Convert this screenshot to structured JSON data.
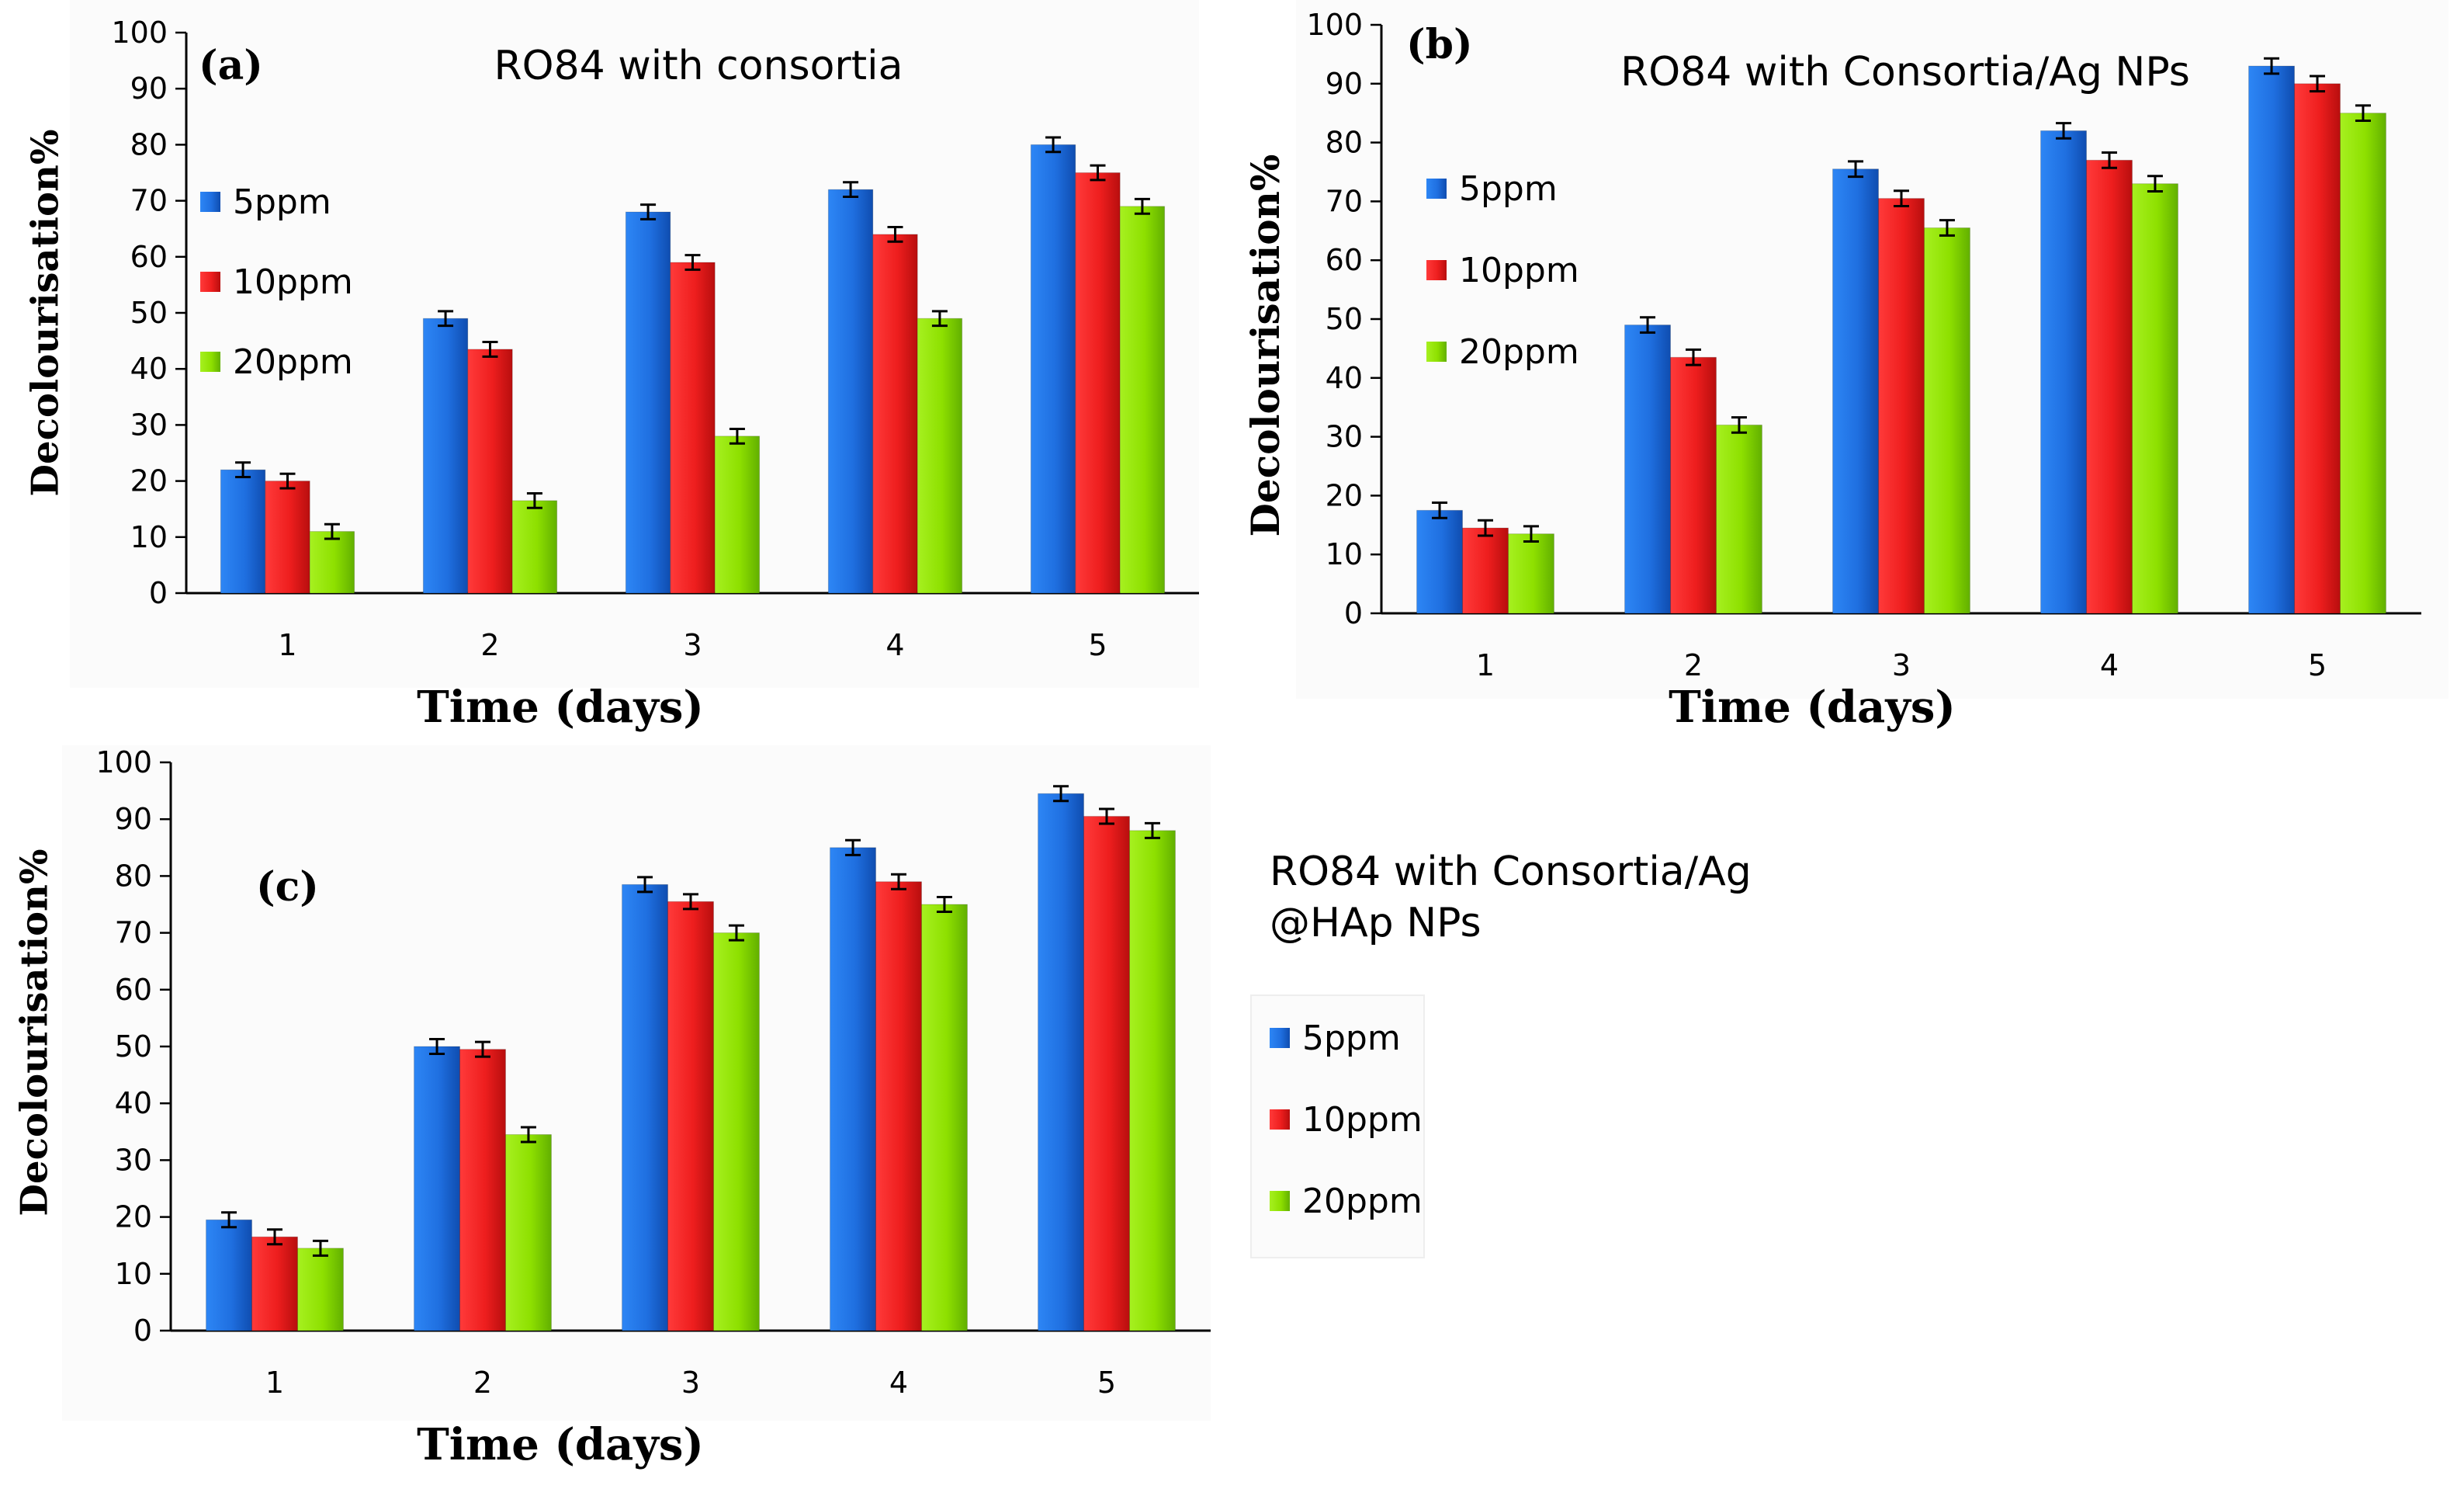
{
  "chart_data": [
    {
      "type": "bar",
      "panel_label": "(a)",
      "title": "RO84  with consortia",
      "xlabel": "Time  (days)",
      "ylabel": "Decolourisation%",
      "categories": [
        "1",
        "2",
        "3",
        "4",
        "5"
      ],
      "ylim": [
        0,
        100
      ],
      "yticks": [
        "0",
        "10",
        "20",
        "30",
        "40",
        "50",
        "60",
        "70",
        "80",
        "90",
        "100"
      ],
      "error_bars": true,
      "series": [
        {
          "name": "5ppm",
          "color": "#1F6FE0",
          "values": [
            22,
            49,
            68,
            72,
            80
          ]
        },
        {
          "name": "10ppm",
          "color": "#EE1E1E",
          "values": [
            20,
            43.5,
            59,
            64,
            75
          ]
        },
        {
          "name": "20ppm",
          "color": "#8EE000",
          "values": [
            11,
            16.5,
            28,
            49,
            69
          ]
        }
      ]
    },
    {
      "type": "bar",
      "panel_label": "(b)",
      "title": "RO84 with Consortia/Ag NPs",
      "xlabel": "Time  (days)",
      "ylabel": "Decolourisation%",
      "categories": [
        "1",
        "2",
        "3",
        "4",
        "5"
      ],
      "ylim": [
        0,
        100
      ],
      "yticks": [
        "0",
        "10",
        "20",
        "30",
        "40",
        "50",
        "60",
        "70",
        "80",
        "90",
        "100"
      ],
      "error_bars": true,
      "series": [
        {
          "name": "5ppm",
          "color": "#1F6FE0",
          "values": [
            17.5,
            49,
            75.5,
            82,
            93
          ]
        },
        {
          "name": "10ppm",
          "color": "#EE1E1E",
          "values": [
            14.5,
            43.5,
            70.5,
            77,
            90
          ]
        },
        {
          "name": "20ppm",
          "color": "#8EE000",
          "values": [
            13.5,
            32,
            65.5,
            73,
            85
          ]
        }
      ]
    },
    {
      "type": "bar",
      "panel_label": "(c)",
      "title": "RO84 with Consortia/Ag\n@HAp NPs",
      "xlabel": "Time  (days)",
      "ylabel": "Decolourisation%",
      "categories": [
        "1",
        "2",
        "3",
        "4",
        "5"
      ],
      "ylim": [
        0,
        100
      ],
      "yticks": [
        "0",
        "10",
        "20",
        "30",
        "40",
        "50",
        "60",
        "70",
        "80",
        "90",
        "100"
      ],
      "error_bars": true,
      "series": [
        {
          "name": "5ppm",
          "color": "#1F6FE0",
          "values": [
            19.5,
            50,
            78.5,
            85,
            94.5
          ]
        },
        {
          "name": "10ppm",
          "color": "#EE1E1E",
          "values": [
            16.5,
            49.5,
            75.5,
            79,
            90.5
          ]
        },
        {
          "name": "20ppm",
          "color": "#8EE000",
          "values": [
            14.5,
            34.5,
            70,
            75,
            88
          ]
        }
      ]
    }
  ]
}
